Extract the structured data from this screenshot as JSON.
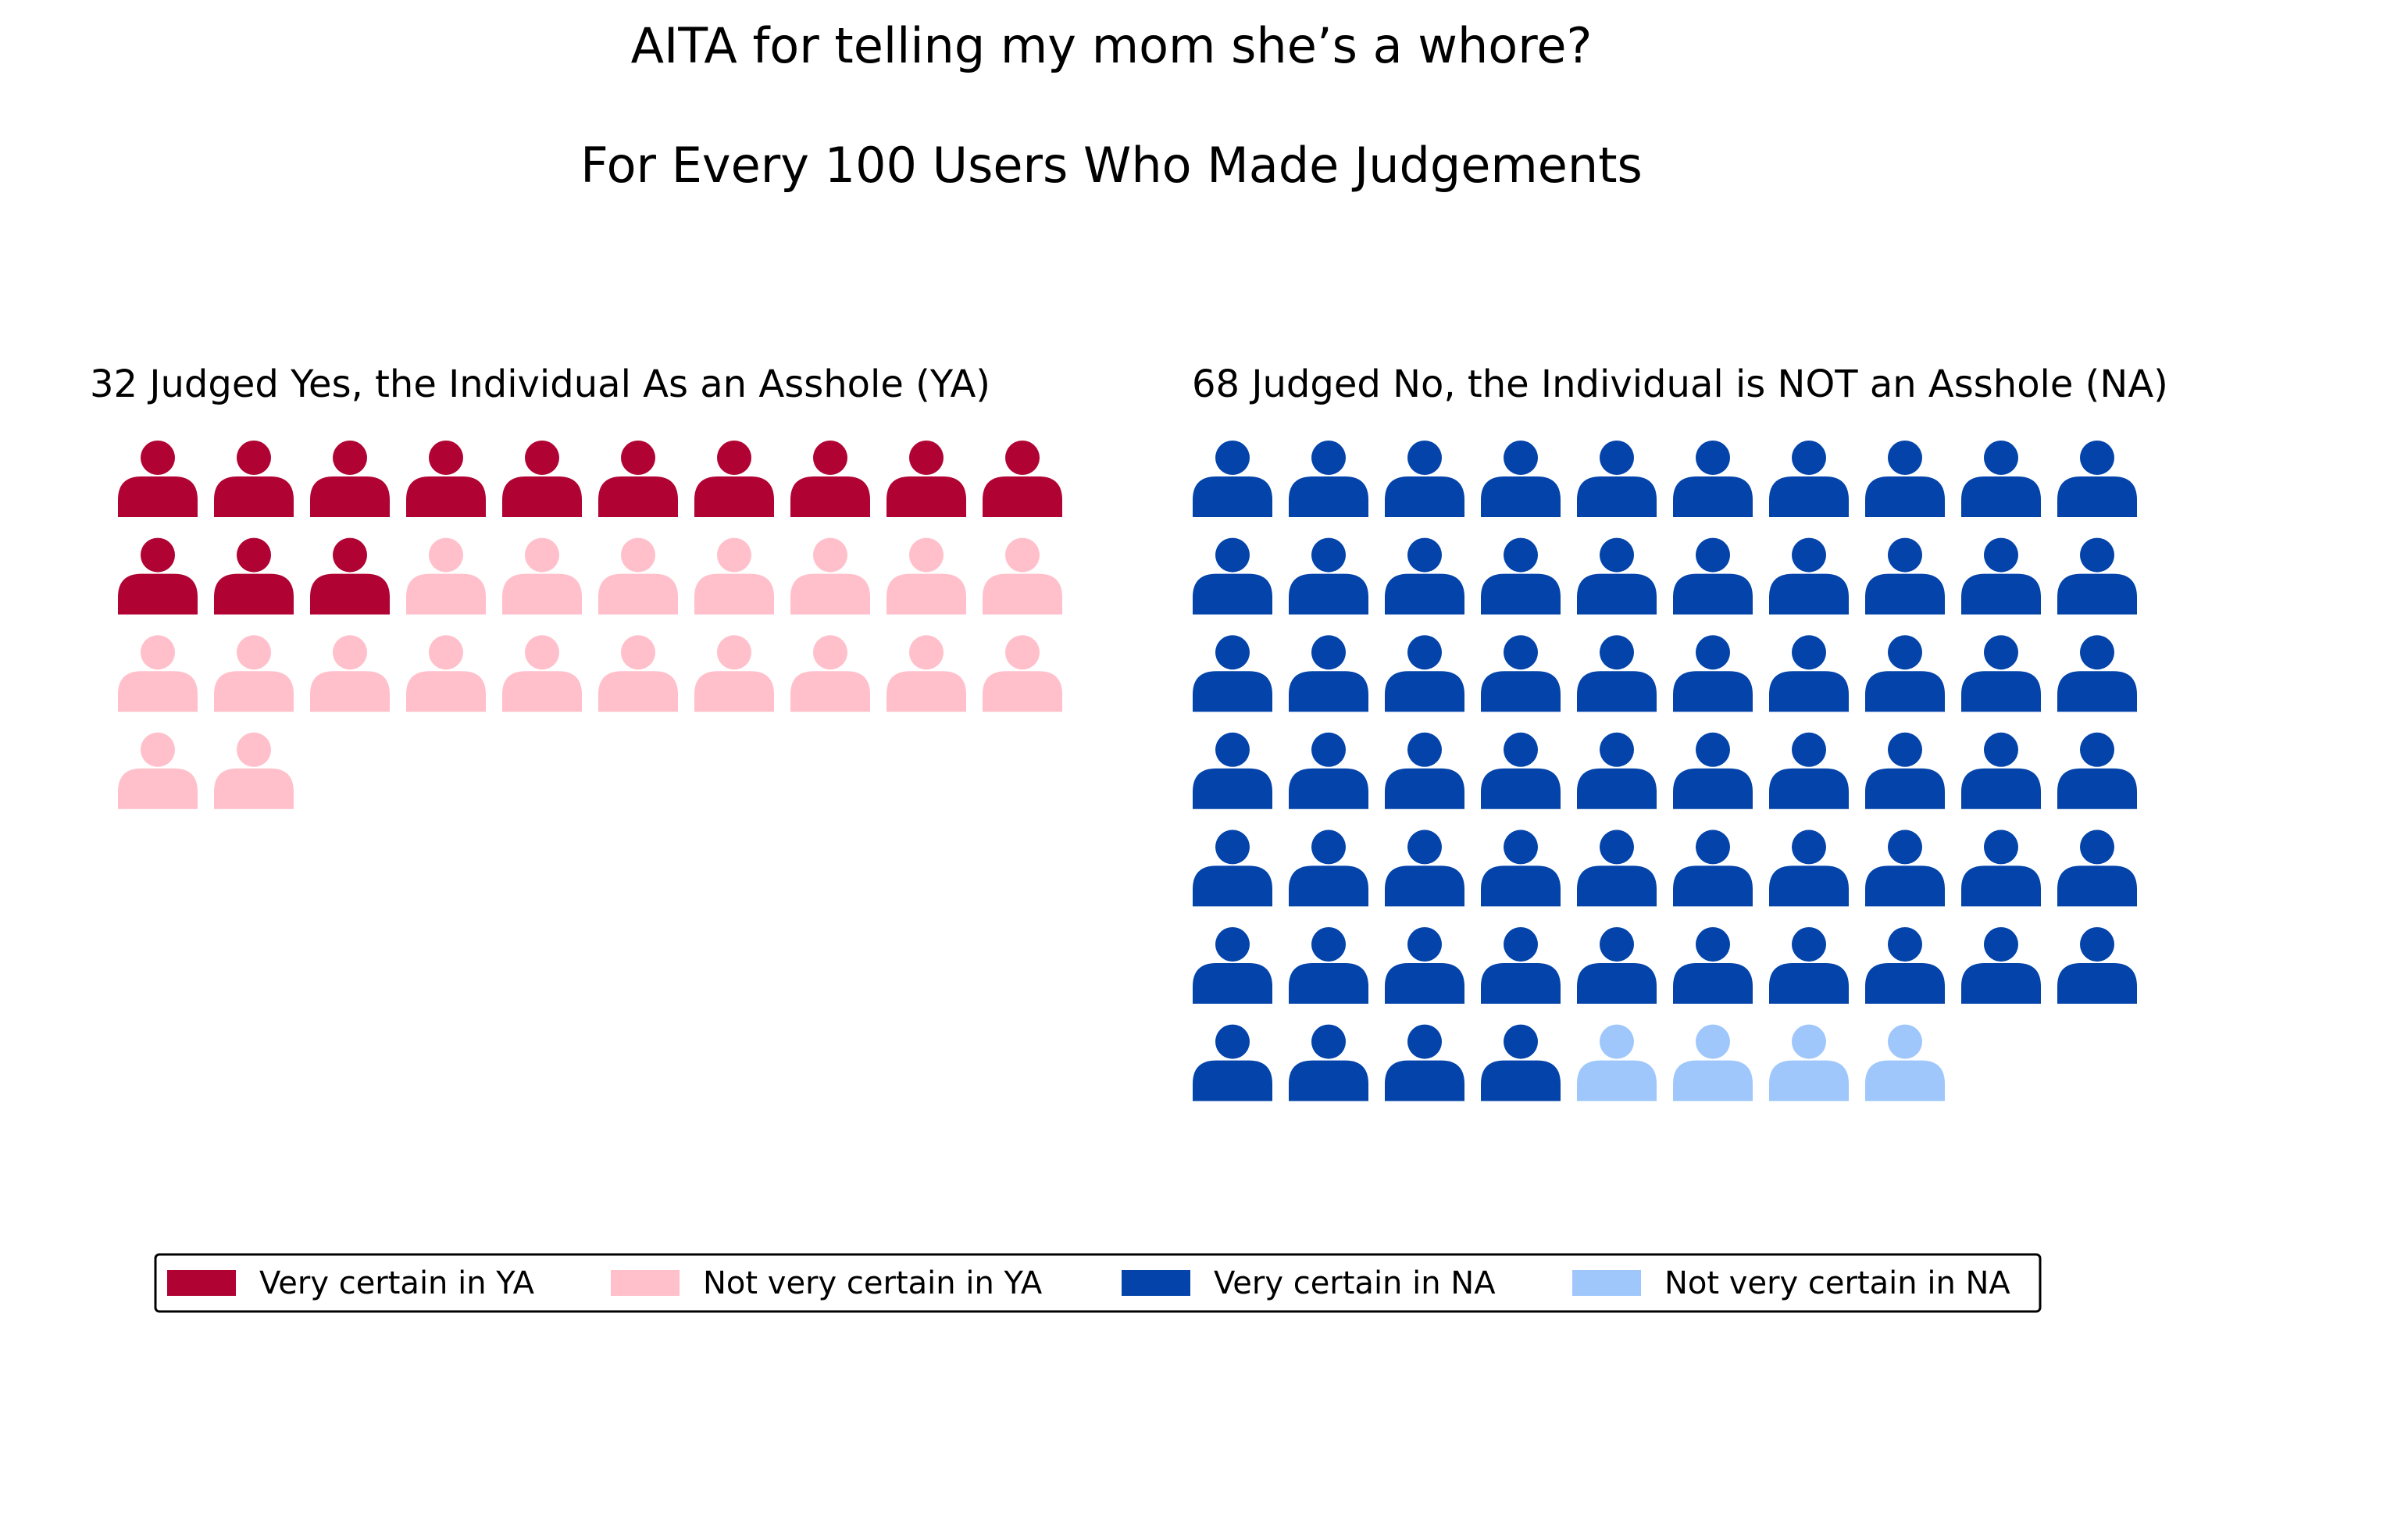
{
  "chart_data": {
    "type": "pictograph",
    "title": "AITA for telling my mom she’s a whore?",
    "subtitle": "For Every 100 Users Who Made Judgements",
    "panels": [
      {
        "id": "ya",
        "title": "32 Judged Yes, the Individual As an Asshole (YA)",
        "total": 32,
        "columns": 10,
        "segments": [
          {
            "name": "Very certain in YA",
            "count": 13,
            "color": "#b00233"
          },
          {
            "name": "Not very certain in YA",
            "count": 19,
            "color": "#ffc0cb"
          }
        ]
      },
      {
        "id": "na",
        "title": "68 Judged No, the Individual is NOT an Asshole (NA)",
        "total": 68,
        "columns": 10,
        "segments": [
          {
            "name": "Very certain in NA",
            "count": 64,
            "color": "#0343aa"
          },
          {
            "name": "Not very certain in NA",
            "count": 4,
            "color": "#9fc7fc"
          }
        ]
      }
    ],
    "legend": {
      "placement": "bottom",
      "entries": [
        {
          "label": "Very certain in YA",
          "color": "#b00233"
        },
        {
          "label": "Not very certain in YA",
          "color": "#ffc0cb"
        },
        {
          "label": "Very certain in NA",
          "color": "#0343aa"
        },
        {
          "label": "Not very certain in NA",
          "color": "#9fc7fc"
        }
      ]
    },
    "icon": "person-icon"
  }
}
